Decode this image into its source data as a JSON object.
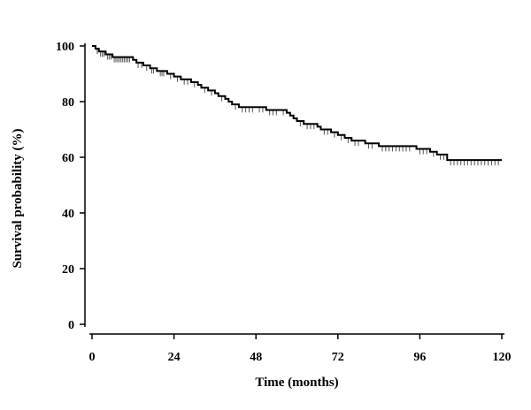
{
  "chart_data": {
    "type": "line",
    "title": "",
    "xlabel": "Time (months)",
    "ylabel": "Survival probability (%)",
    "xlim": [
      0,
      120
    ],
    "ylim": [
      0,
      100
    ],
    "xticks": [
      0,
      24,
      48,
      72,
      96,
      120
    ],
    "yticks": [
      0,
      20,
      40,
      60,
      80,
      100
    ],
    "grid": false,
    "legend": "none",
    "line_color": "#000000",
    "censor_color": "#555555",
    "series": [
      {
        "style": "step",
        "points": [
          [
            0,
            100
          ],
          [
            1,
            99
          ],
          [
            2,
            98
          ],
          [
            4,
            97
          ],
          [
            6,
            96
          ],
          [
            12,
            95
          ],
          [
            13,
            94
          ],
          [
            15,
            93
          ],
          [
            17,
            92
          ],
          [
            19,
            91
          ],
          [
            22,
            90
          ],
          [
            24,
            89
          ],
          [
            26,
            88
          ],
          [
            29,
            87
          ],
          [
            31,
            86
          ],
          [
            32,
            85
          ],
          [
            34,
            84
          ],
          [
            36,
            83
          ],
          [
            37,
            82
          ],
          [
            39,
            81
          ],
          [
            40,
            80
          ],
          [
            41,
            79
          ],
          [
            43,
            78
          ],
          [
            51,
            77
          ],
          [
            57,
            76
          ],
          [
            58,
            75
          ],
          [
            59,
            74
          ],
          [
            60,
            73
          ],
          [
            62,
            72
          ],
          [
            66,
            71
          ],
          [
            67,
            70
          ],
          [
            70,
            69
          ],
          [
            72,
            68
          ],
          [
            74,
            67
          ],
          [
            76,
            66
          ],
          [
            80,
            65
          ],
          [
            84,
            64
          ],
          [
            95,
            63
          ],
          [
            99,
            62
          ],
          [
            101,
            61
          ],
          [
            104,
            59
          ],
          [
            120,
            59
          ]
        ],
        "censored": [
          1.5,
          2.5,
          3,
          3.5,
          4.5,
          5,
          5.5,
          6.5,
          7,
          7.5,
          8,
          8.5,
          9,
          9.5,
          10,
          10.5,
          11,
          13.5,
          14.5,
          16,
          17.5,
          18,
          20,
          20.5,
          21,
          23,
          25,
          27,
          28,
          30,
          33,
          35,
          38,
          42,
          44,
          45,
          46,
          47,
          49,
          50,
          52,
          53,
          54,
          56,
          61,
          63,
          64,
          65,
          68,
          69,
          71,
          73,
          75,
          77,
          78,
          81,
          82,
          85,
          86,
          87,
          88,
          89,
          90,
          91,
          92,
          93,
          96,
          97,
          98,
          100,
          102,
          103,
          105,
          106,
          107,
          108,
          109,
          110,
          111,
          112,
          113,
          114,
          115,
          116,
          117,
          118,
          119
        ]
      }
    ]
  }
}
